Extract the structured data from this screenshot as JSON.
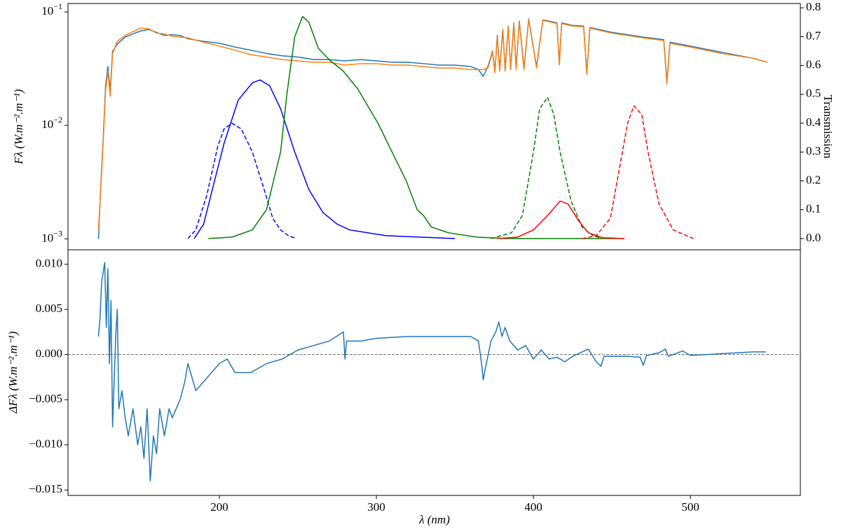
{
  "chart_data": [
    {
      "type": "line",
      "yscale": "log",
      "ylabel": "Fλ (W.m⁻².m⁻¹)",
      "y2label": "Transmission",
      "xlim": [
        103.6,
        570
      ],
      "ylim": [
        0.0008,
        0.1186
      ],
      "y2lim": [
        -0.039,
        0.815
      ],
      "yticks": [
        {
          "value": 0.001,
          "label": "10",
          "exponent": "−3"
        },
        {
          "value": 0.01,
          "label": "10",
          "exponent": "−2"
        },
        {
          "value": 0.1,
          "label": "10",
          "exponent": "−1"
        }
      ],
      "y2ticks": [
        {
          "value": 0,
          "label": "0.0"
        },
        {
          "value": 0.1,
          "label": "0.1"
        },
        {
          "value": 0.2,
          "label": "0.2"
        },
        {
          "value": 0.3,
          "label": "0.3"
        },
        {
          "value": 0.4,
          "label": "0.4"
        },
        {
          "value": 0.5,
          "label": "0.5"
        },
        {
          "value": 0.6,
          "label": "0.6"
        },
        {
          "value": 0.7,
          "label": "0.7"
        },
        {
          "value": 0.8,
          "label": "0.8"
        }
      ],
      "x": [
        123,
        124.5,
        126,
        127.5,
        129,
        130.5,
        132,
        135,
        140,
        145,
        150,
        155,
        160,
        165,
        170,
        175,
        180,
        190,
        200,
        210,
        220,
        230,
        240,
        250,
        260,
        270,
        280,
        290,
        300,
        310,
        320,
        330,
        340,
        350,
        360,
        365,
        368,
        371,
        374,
        375.5,
        377,
        378.5,
        380.5,
        382,
        384,
        385.5,
        387.5,
        389,
        391,
        394,
        397,
        402,
        406,
        410,
        415,
        416.5,
        418,
        425,
        432,
        434,
        436,
        450,
        470,
        483,
        485,
        487,
        500,
        520,
        540,
        549
      ],
      "series": [
        {
          "color": "#1f77b4",
          "linestyle": "solid",
          "values": [
            0.001,
            0.003,
            0.0074,
            0.022,
            0.033,
            0.02,
            0.045,
            0.052,
            0.06,
            0.064,
            0.068,
            0.07,
            0.066,
            0.062,
            0.063,
            0.062,
            0.058,
            0.055,
            0.053,
            0.049,
            0.046,
            0.043,
            0.041,
            0.04,
            0.038,
            0.038,
            0.037,
            0.038,
            0.037,
            0.036,
            0.036,
            0.035,
            0.034,
            0.034,
            0.033,
            0.031,
            0.027,
            0.033,
            0.045,
            0.03,
            0.062,
            0.031,
            0.07,
            0.031,
            0.075,
            0.031,
            0.08,
            0.032,
            0.083,
            0.032,
            0.087,
            0.033,
            0.085,
            0.083,
            0.08,
            0.035,
            0.08,
            0.076,
            0.075,
            0.029,
            0.073,
            0.066,
            0.06,
            0.057,
            0.024,
            0.054,
            0.05,
            0.044,
            0.039,
            0.036
          ]
        },
        {
          "color": "#ff7f0e",
          "linestyle": "solid",
          "values": [
            0.0012,
            0.0028,
            0.007,
            0.02,
            0.03,
            0.018,
            0.043,
            0.055,
            0.062,
            0.067,
            0.072,
            0.071,
            0.065,
            0.064,
            0.061,
            0.06,
            0.059,
            0.054,
            0.05,
            0.046,
            0.042,
            0.04,
            0.038,
            0.037,
            0.036,
            0.036,
            0.034,
            0.035,
            0.035,
            0.034,
            0.034,
            0.033,
            0.032,
            0.032,
            0.031,
            0.031,
            0.031,
            0.032,
            0.044,
            0.029,
            0.06,
            0.03,
            0.069,
            0.03,
            0.074,
            0.031,
            0.079,
            0.031,
            0.082,
            0.031,
            0.086,
            0.032,
            0.084,
            0.082,
            0.079,
            0.034,
            0.079,
            0.075,
            0.074,
            0.028,
            0.072,
            0.065,
            0.059,
            0.056,
            0.023,
            0.053,
            0.049,
            0.043,
            0.039,
            0.036
          ]
        },
        {
          "color": "#0000ff",
          "linestyle": "dashed",
          "axis": "y2",
          "x": [
            180,
            185,
            192,
            199,
            203,
            208,
            214,
            221,
            228,
            234,
            239,
            244,
            249
          ],
          "values": [
            0,
            0.03,
            0.15,
            0.32,
            0.38,
            0.4,
            0.38,
            0.3,
            0.18,
            0.07,
            0.03,
            0.01,
            0
          ]
        },
        {
          "color": "#0000ff",
          "linestyle": "solid",
          "axis": "y2",
          "x": [
            184,
            190,
            196,
            203,
            212,
            221,
            226,
            232,
            239,
            248,
            257,
            266,
            275,
            283,
            306,
            328,
            350
          ],
          "values": [
            0,
            0.05,
            0.18,
            0.33,
            0.48,
            0.54,
            0.55,
            0.53,
            0.45,
            0.3,
            0.17,
            0.09,
            0.05,
            0.03,
            0.01,
            0.005,
            0
          ]
        },
        {
          "color": "#008000",
          "linestyle": "solid",
          "axis": "y2",
          "x": [
            193,
            208,
            221,
            230,
            239,
            243,
            248,
            253,
            257,
            263,
            270,
            279,
            288,
            301,
            310,
            319,
            326,
            330,
            335,
            346,
            364,
            382,
            458
          ],
          "values": [
            0,
            0.005,
            0.03,
            0.1,
            0.3,
            0.5,
            0.7,
            0.77,
            0.75,
            0.66,
            0.62,
            0.58,
            0.52,
            0.4,
            0.3,
            0.2,
            0.1,
            0.08,
            0.04,
            0.02,
            0.005,
            0,
            0
          ]
        },
        {
          "color": "#008000",
          "linestyle": "dashed",
          "axis": "y2",
          "x": [
            373,
            386,
            393,
            400,
            404,
            409,
            413,
            417,
            424,
            431,
            438,
            444
          ],
          "values": [
            0,
            0.02,
            0.08,
            0.3,
            0.45,
            0.49,
            0.43,
            0.3,
            0.13,
            0.04,
            0.01,
            0
          ]
        },
        {
          "color": "#ff0000",
          "linestyle": "solid",
          "axis": "y2",
          "x": [
            377,
            390,
            400,
            409,
            417,
            422,
            429,
            435,
            444,
            458
          ],
          "values": [
            0,
            0.005,
            0.03,
            0.08,
            0.13,
            0.12,
            0.06,
            0.02,
            0.003,
            0
          ]
        },
        {
          "color": "#ff0000",
          "linestyle": "dashed",
          "axis": "y2",
          "x": [
            431,
            440,
            449,
            455,
            460,
            464,
            469,
            473,
            480,
            489,
            502
          ],
          "values": [
            0,
            0.01,
            0.07,
            0.25,
            0.4,
            0.46,
            0.43,
            0.3,
            0.12,
            0.03,
            0
          ]
        }
      ]
    },
    {
      "type": "line",
      "xlabel": "λ (nm)",
      "ylabel": "ΔFλ (W.m⁻².m⁻¹)",
      "xlim": [
        103.6,
        570
      ],
      "xticks": [
        200,
        300,
        400,
        500
      ],
      "ylim": [
        -0.0156,
        0.0116
      ],
      "yticks": [
        {
          "value": 0.01,
          "label": "0.010"
        },
        {
          "value": 0.005,
          "label": "0.005"
        },
        {
          "value": 0,
          "label": "0.000"
        },
        {
          "value": -0.005,
          "label": "−0.005"
        },
        {
          "value": -0.01,
          "label": "−0.010"
        },
        {
          "value": -0.015,
          "label": "−0.015"
        }
      ],
      "hlines": [
        0
      ],
      "x": [
        123,
        124,
        125,
        127,
        128,
        129,
        130,
        131,
        132,
        134,
        135,
        136,
        138,
        140,
        142,
        145,
        148,
        150,
        152,
        154,
        156,
        158,
        160,
        162,
        165,
        168,
        170,
        175,
        178,
        180,
        185,
        190,
        195,
        200,
        205,
        210,
        220,
        230,
        240,
        250,
        260,
        270,
        279,
        280,
        281,
        290,
        300,
        320,
        340,
        360,
        365,
        367,
        368,
        370,
        373,
        376,
        378,
        380,
        382,
        385,
        390,
        395,
        400,
        405,
        410,
        415,
        420,
        425,
        430,
        435,
        440,
        443,
        445,
        450,
        460,
        468,
        470,
        472,
        480,
        484,
        486,
        495,
        500,
        510,
        520,
        530,
        540,
        548
      ],
      "series": [
        {
          "color": "#1f77b4",
          "values": [
            0.002,
            0.004,
            0.008,
            0.0102,
            0.003,
            0.0095,
            -0.001,
            0.006,
            -0.008,
            0.002,
            0.005,
            -0.006,
            -0.004,
            -0.007,
            -0.009,
            -0.006,
            -0.01,
            -0.008,
            -0.0115,
            -0.006,
            -0.014,
            -0.009,
            -0.011,
            -0.006,
            -0.009,
            -0.006,
            -0.007,
            -0.005,
            -0.003,
            -0.001,
            -0.004,
            -0.003,
            -0.002,
            -0.001,
            -0.0005,
            -0.002,
            -0.002,
            -0.001,
            -0.0005,
            0.0005,
            0.001,
            0.0015,
            0.0025,
            -0.0005,
            0.0015,
            0.0015,
            0.0018,
            0.002,
            0.002,
            0.002,
            0.0015,
            -0.001,
            -0.0028,
            -0.001,
            0.0015,
            0.0025,
            0.0036,
            0.002,
            0.003,
            0.0015,
            0.0005,
            0.001,
            -0.0005,
            0.0005,
            -0.0005,
            -0.0003,
            -0.0008,
            -0.0002,
            0.0002,
            0.0006,
            -0.0008,
            -0.0013,
            -0.0002,
            -0.0002,
            -0.0002,
            -0.0003,
            -0.0012,
            -0.0001,
            0.0002,
            0.0006,
            -0.0002,
            0.0004,
            -0.0001,
            0,
            0.0001,
            0.0002,
            0.0003,
            0.0003
          ]
        }
      ]
    }
  ]
}
